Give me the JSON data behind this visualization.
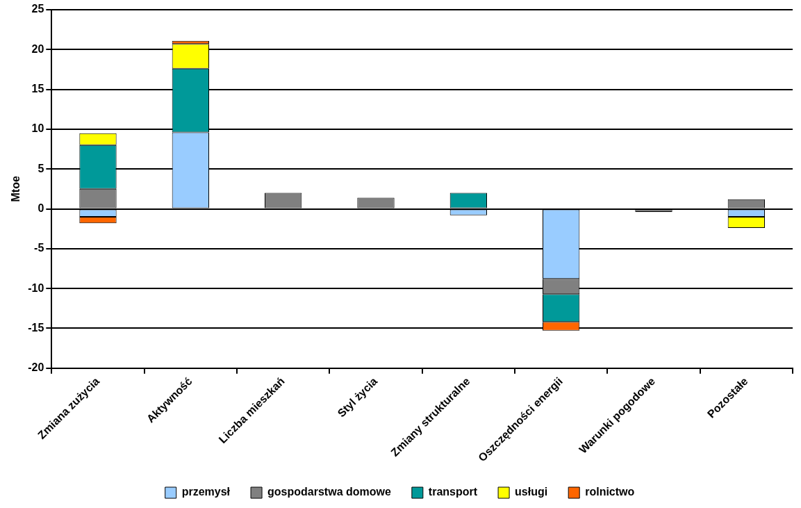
{
  "chart_data": {
    "type": "bar",
    "stacked": true,
    "ylabel": "Mtoe",
    "categories": [
      "Zmiana zużycia",
      "Aktywność",
      "Liczba mieszkań",
      "Styl życia",
      "Zmiany strukturalne",
      "Oszczędności energii",
      "Warunki pogodowe",
      "Pozostałe"
    ],
    "series": [
      {
        "name": "przemysł",
        "color": "#99ccff",
        "values": [
          -1.0,
          9.6,
          null,
          null,
          -0.8,
          -8.8,
          null,
          -1.0
        ]
      },
      {
        "name": "gospodarstwa domowe",
        "color": "#808080",
        "values": [
          2.5,
          null,
          2.0,
          1.4,
          null,
          -1.9,
          -0.4,
          1.2
        ]
      },
      {
        "name": "transport",
        "color": "#009999",
        "values": [
          5.5,
          8.0,
          null,
          null,
          2.0,
          -3.5,
          null,
          null
        ]
      },
      {
        "name": "usługi",
        "color": "#ffff00",
        "values": [
          1.5,
          3.1,
          null,
          null,
          null,
          null,
          null,
          -1.4
        ]
      },
      {
        "name": "rolnictwo",
        "color": "#ff6600",
        "values": [
          -0.8,
          0.4,
          null,
          null,
          null,
          -1.1,
          null,
          null
        ]
      }
    ],
    "ylim": [
      -20,
      25
    ],
    "yticks": [
      -20,
      -15,
      -10,
      -5,
      0,
      5,
      10,
      15,
      20,
      25
    ],
    "grid": "y",
    "legend": "bottom"
  }
}
